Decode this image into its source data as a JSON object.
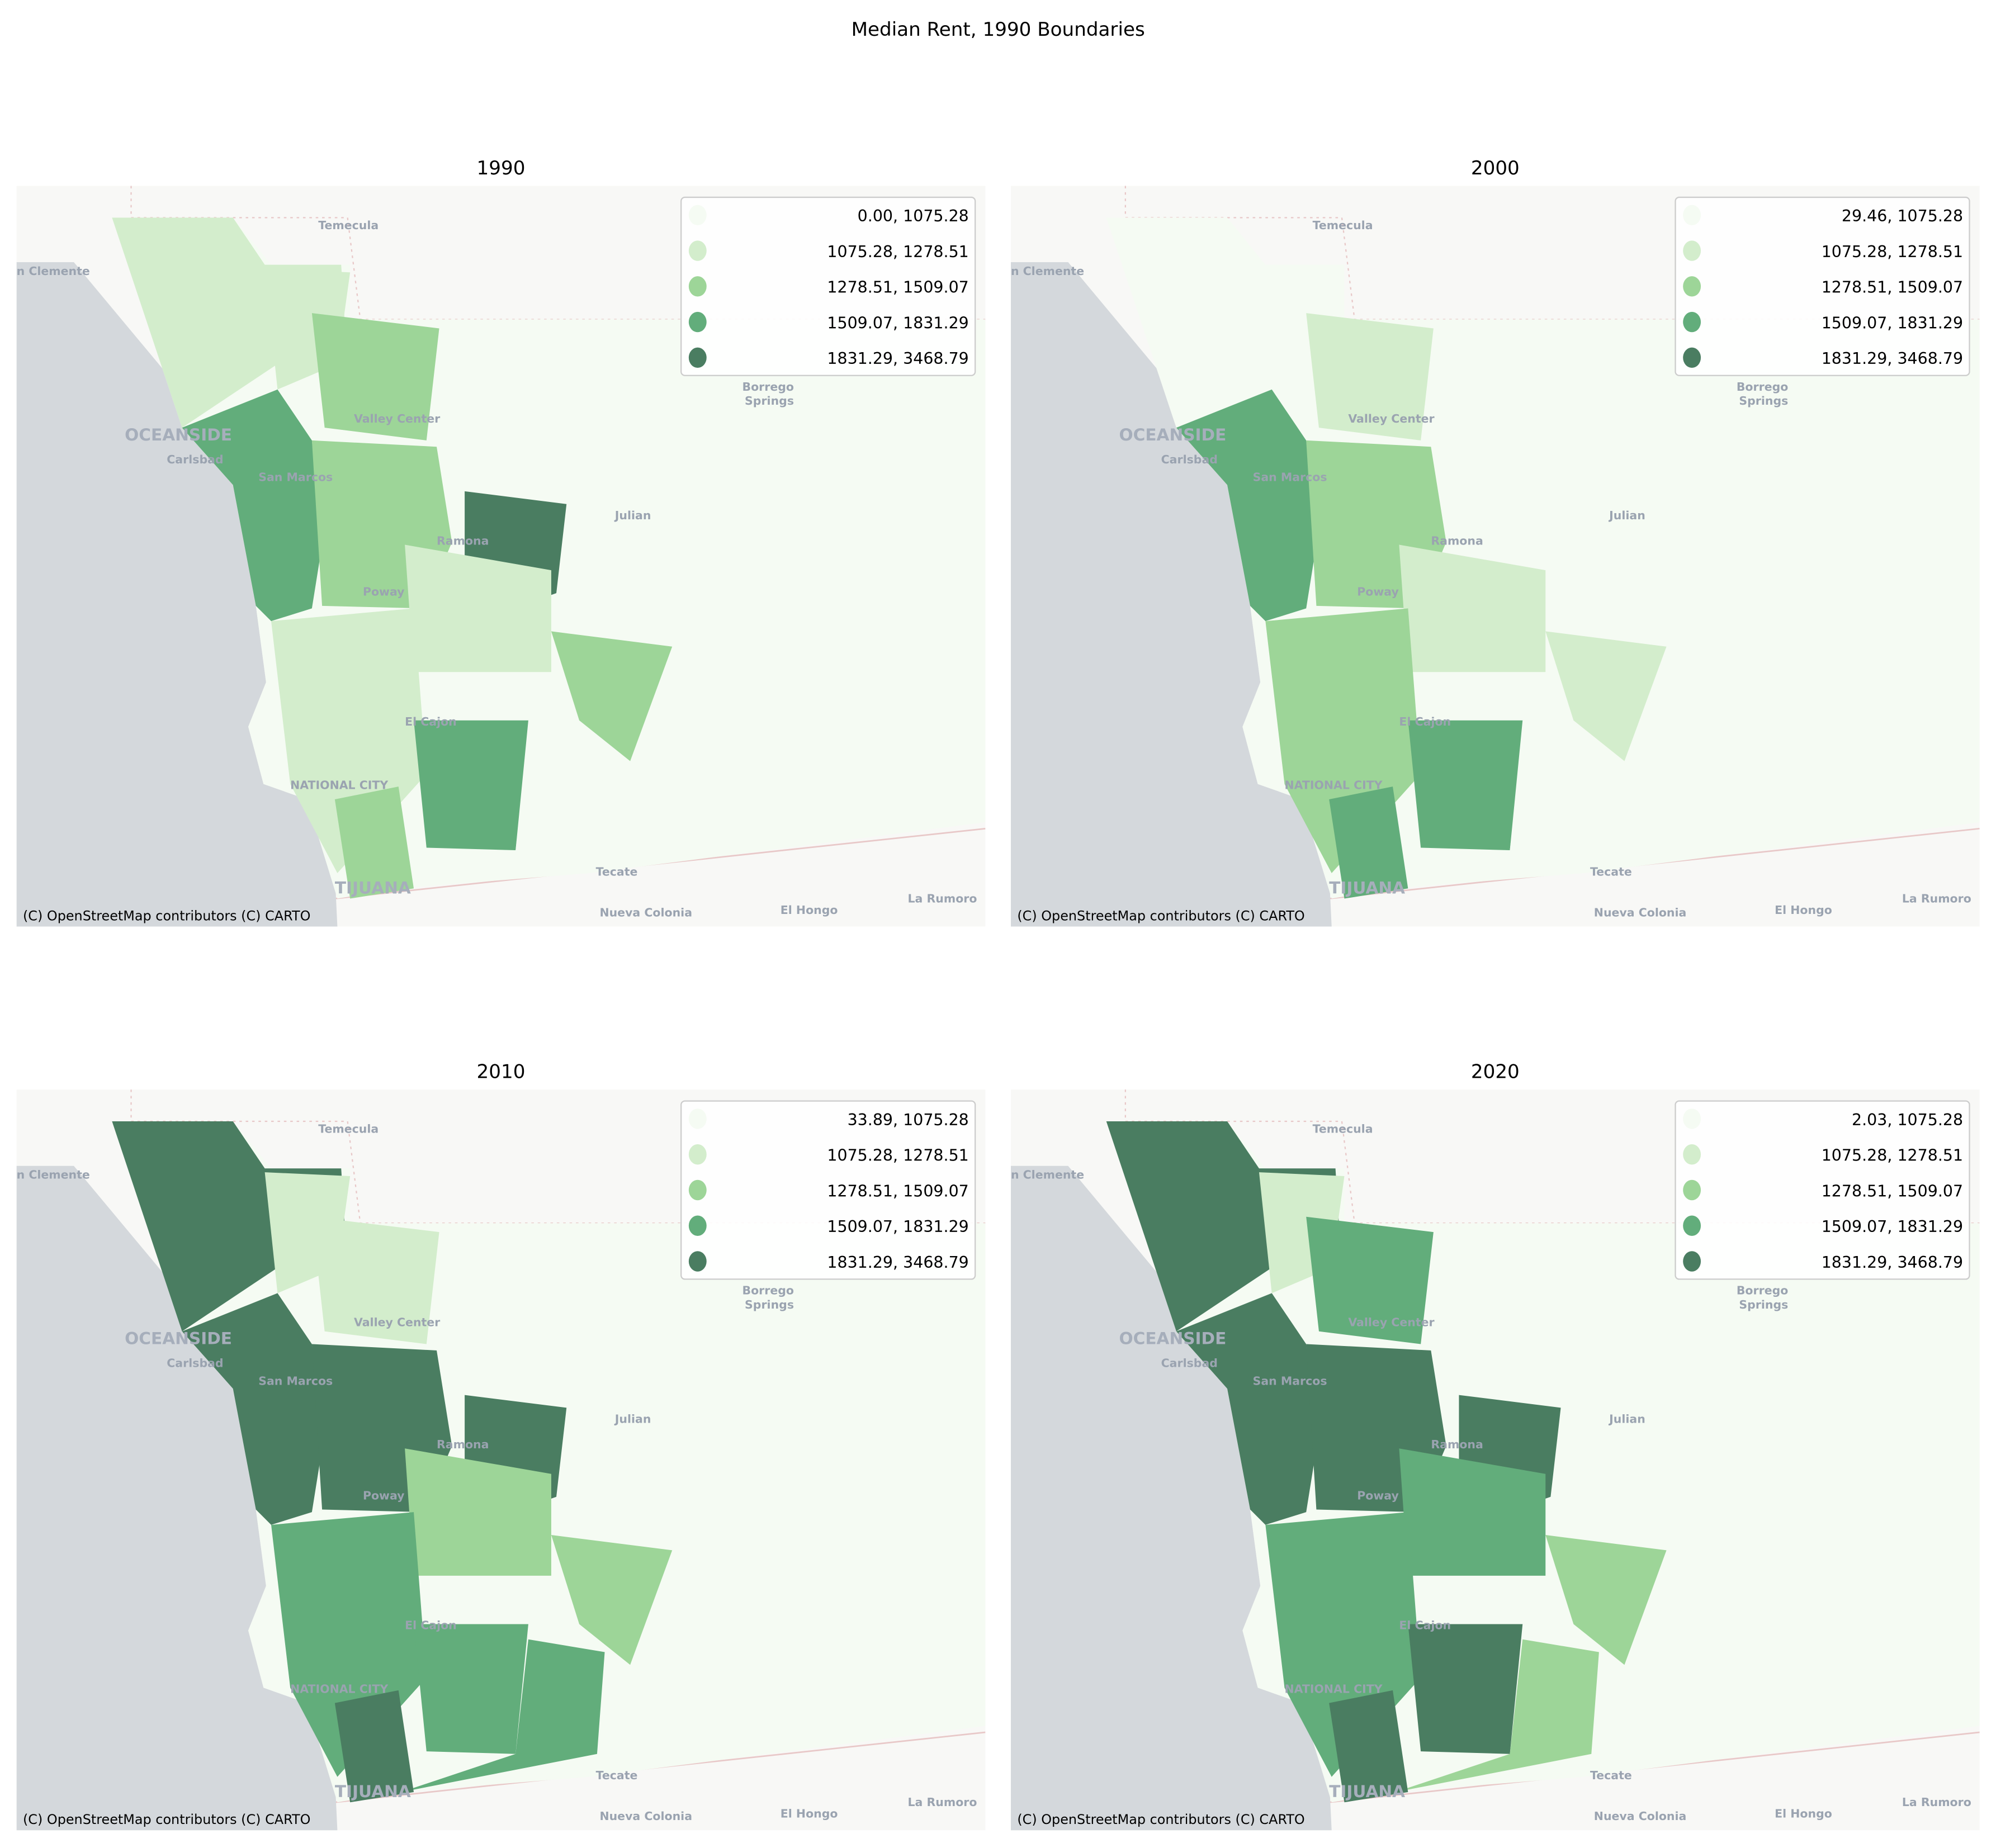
{
  "figure": {
    "title": "Median Rent, 1990 Boundaries"
  },
  "colors": {
    "classes": [
      "#f5fbf3",
      "#d3edcc",
      "#9dd598",
      "#62ad7b",
      "#4a7d61"
    ],
    "ocean": "#d4d8dc",
    "land": "#f8f8f6"
  },
  "basemap": {
    "attribution": "(C) OpenStreetMap contributors (C) CARTO",
    "places": {
      "temecula": "Temecula",
      "san_clemente": "n Clemente",
      "oceanside": "OCEANSIDE",
      "carlsbad": "Carlsbad",
      "san_marcos": "San Marcos",
      "valley_center": "Valley Center",
      "borrego": "Borrego",
      "springs": "Springs",
      "julian": "Julian",
      "ramona": "Ramona",
      "poway": "Poway",
      "el_cajon": "El Cajon",
      "national_city": "NATIONAL CITY",
      "tijuana": "TIJUANA",
      "tecate": "Tecate",
      "nueva_colonia": "Nueva Colonia",
      "el_hongo": "El Hongo",
      "la_rumorosa": "La Rumoro"
    }
  },
  "panels": [
    {
      "title": "1990",
      "legend": [
        "0.00, 1075.28",
        "1075.28, 1278.51",
        "1278.51, 1509.07",
        "1509.07, 1831.29",
        "1831.29, 3468.79"
      ],
      "fill_classes": [
        1,
        1,
        3,
        2,
        4,
        1,
        2,
        1,
        3,
        0,
        2,
        2
      ]
    },
    {
      "title": "2000",
      "legend": [
        "29.46, 1075.28",
        "1075.28, 1278.51",
        "1278.51, 1509.07",
        "1509.07, 1831.29",
        "1831.29, 3468.79"
      ],
      "fill_classes": [
        0,
        0,
        3,
        2,
        0,
        1,
        1,
        2,
        3,
        0,
        3,
        1
      ]
    },
    {
      "title": "2010",
      "legend": [
        "33.89, 1075.28",
        "1075.28, 1278.51",
        "1278.51, 1509.07",
        "1509.07, 1831.29",
        "1831.29, 3468.79"
      ],
      "fill_classes": [
        4,
        1,
        4,
        4,
        4,
        2,
        2,
        3,
        3,
        3,
        4,
        1
      ]
    },
    {
      "title": "2020",
      "legend": [
        "2.03, 1075.28",
        "1075.28, 1278.51",
        "1278.51, 1509.07",
        "1509.07, 1831.29",
        "1831.29, 3468.79"
      ],
      "fill_classes": [
        4,
        1,
        4,
        4,
        4,
        3,
        2,
        3,
        4,
        2,
        4,
        3
      ]
    }
  ]
}
